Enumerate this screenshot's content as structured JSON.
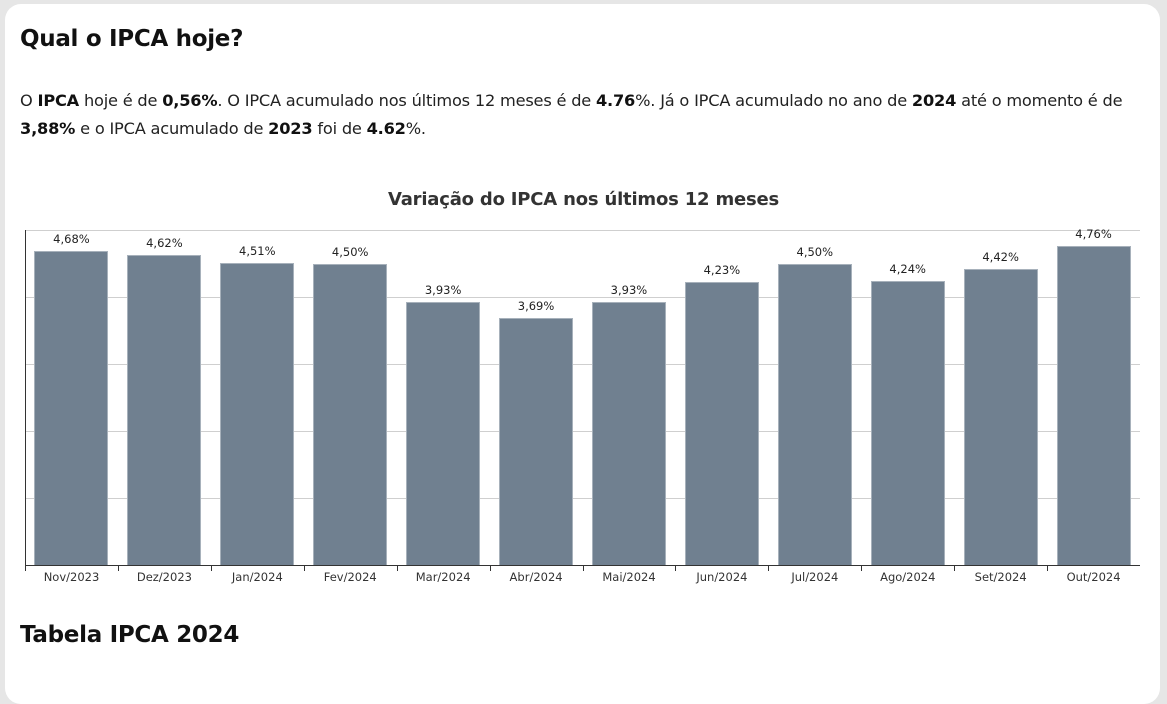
{
  "header": {
    "title": "Qual o IPCA hoje?"
  },
  "intro": {
    "p1": "O ",
    "b1": "IPCA",
    "p2": " hoje é de ",
    "b2": "0,56%",
    "p3": ". O IPCA acumulado nos últimos 12 meses é de ",
    "b3": "4.76",
    "p4": "%. Já o IPCA acumulado no ano de ",
    "b4": "2024",
    "p5": " até o momento é de ",
    "b5": "3,88%",
    "p6": " e o IPCA acumulado de ",
    "b6": "2023",
    "p7": " foi de ",
    "b7": "4.62",
    "p8": "%."
  },
  "section2": {
    "title": "Tabela IPCA 2024"
  },
  "colors": {
    "bar": "#708090",
    "grid": "#cfcfcf",
    "axis": "#333333"
  },
  "chart_data": {
    "type": "bar",
    "title": "Variação do IPCA nos últimos 12 meses",
    "xlabel": "",
    "ylabel": "",
    "ylim": [
      0,
      5
    ],
    "grid": true,
    "legend": null,
    "categories": [
      "Nov/2023",
      "Dez/2023",
      "Jan/2024",
      "Fev/2024",
      "Mar/2024",
      "Abr/2024",
      "Mai/2024",
      "Jun/2024",
      "Jul/2024",
      "Ago/2024",
      "Set/2024",
      "Out/2024"
    ],
    "values": [
      4.68,
      4.62,
      4.51,
      4.5,
      3.93,
      3.69,
      3.93,
      4.23,
      4.5,
      4.24,
      4.42,
      4.76
    ],
    "labels": [
      "4,68%",
      "4,62%",
      "4,51%",
      "4,50%",
      "3,93%",
      "3,69%",
      "3,93%",
      "4,23%",
      "4,50%",
      "4,24%",
      "4,42%",
      "4,76%"
    ]
  }
}
